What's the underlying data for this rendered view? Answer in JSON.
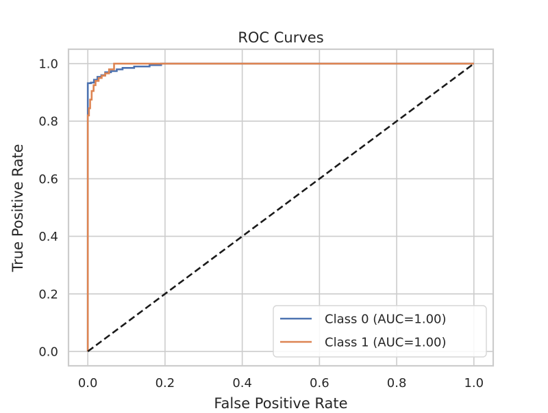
{
  "chart_data": {
    "type": "line",
    "title": "ROC Curves",
    "xlabel": "False Positive Rate",
    "ylabel": "True Positive Rate",
    "xlim": [
      -0.05,
      1.05
    ],
    "ylim": [
      -0.05,
      1.05
    ],
    "xticks": [
      0.0,
      0.2,
      0.4,
      0.6,
      0.8,
      1.0
    ],
    "yticks": [
      0.0,
      0.2,
      0.4,
      0.6,
      0.8,
      1.0
    ],
    "xtick_labels": [
      "0.0",
      "0.2",
      "0.4",
      "0.6",
      "0.8",
      "1.0"
    ],
    "ytick_labels": [
      "0.0",
      "0.2",
      "0.4",
      "0.6",
      "0.8",
      "1.0"
    ],
    "grid": true,
    "legend_position": "lower right",
    "series": [
      {
        "name": "Class 0 (AUC=1.00)",
        "color": "#4c72b0",
        "x": [
          0.0,
          0.0,
          0.0,
          0.0,
          0.003,
          0.003,
          0.008,
          0.008,
          0.016,
          0.016,
          0.025,
          0.025,
          0.035,
          0.035,
          0.045,
          0.045,
          0.06,
          0.06,
          0.075,
          0.075,
          0.09,
          0.09,
          0.12,
          0.12,
          0.16,
          0.16,
          0.19,
          0.19,
          1.0
        ],
        "y": [
          0.0,
          0.82,
          0.82,
          0.932,
          0.932,
          0.932,
          0.932,
          0.934,
          0.934,
          0.944,
          0.944,
          0.954,
          0.954,
          0.96,
          0.96,
          0.97,
          0.97,
          0.974,
          0.974,
          0.98,
          0.98,
          0.985,
          0.985,
          0.99,
          0.99,
          0.995,
          0.995,
          1.0,
          1.0
        ]
      },
      {
        "name": "Class 1 (AUC=1.00)",
        "color": "#dd8452",
        "x": [
          0.0,
          0.0,
          0.003,
          0.003,
          0.006,
          0.006,
          0.01,
          0.01,
          0.015,
          0.015,
          0.02,
          0.02,
          0.028,
          0.028,
          0.036,
          0.036,
          0.045,
          0.045,
          0.055,
          0.055,
          0.068,
          0.068,
          1.0
        ],
        "y": [
          0.0,
          0.82,
          0.82,
          0.845,
          0.845,
          0.875,
          0.875,
          0.905,
          0.905,
          0.925,
          0.925,
          0.94,
          0.94,
          0.95,
          0.95,
          0.958,
          0.958,
          0.966,
          0.966,
          0.98,
          0.98,
          1.0,
          1.0
        ]
      }
    ],
    "reference_line": {
      "x": [
        0.0,
        1.0
      ],
      "y": [
        0.0,
        1.0
      ],
      "color": "#1a1a1a",
      "style": "dashed"
    }
  }
}
